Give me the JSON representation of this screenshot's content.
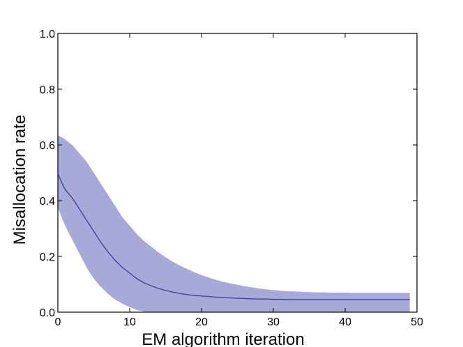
{
  "chart_data": {
    "type": "line",
    "xlabel": "EM algorithm iteration",
    "ylabel": "Misallocation rate",
    "xlim": [
      0,
      50
    ],
    "ylim": [
      0,
      1.0
    ],
    "xticks": [
      0,
      10,
      20,
      30,
      40,
      50
    ],
    "xtick_labels": [
      "0",
      "10",
      "20",
      "30",
      "40",
      "50"
    ],
    "yticks": [
      0.0,
      0.2,
      0.4,
      0.6,
      0.8,
      1.0
    ],
    "ytick_labels": [
      "0.0",
      "0.2",
      "0.4",
      "0.6",
      "0.8",
      "1.0"
    ],
    "grid": false,
    "series": [
      {
        "x": [
          0,
          1,
          2,
          3,
          4,
          5,
          6,
          7,
          8,
          9,
          10,
          11,
          12,
          13,
          14,
          15,
          16,
          17,
          18,
          19,
          20,
          21,
          22,
          23,
          24,
          25,
          26,
          27,
          28,
          29,
          30,
          31,
          32,
          33,
          34,
          35,
          36,
          37,
          38,
          39,
          40,
          41,
          42,
          43,
          44,
          45,
          46,
          47,
          48,
          49
        ],
        "y": [
          0.495,
          0.44,
          0.41,
          0.37,
          0.33,
          0.29,
          0.25,
          0.215,
          0.185,
          0.16,
          0.14,
          0.12,
          0.105,
          0.095,
          0.085,
          0.078,
          0.072,
          0.067,
          0.063,
          0.06,
          0.058,
          0.056,
          0.054,
          0.052,
          0.051,
          0.05,
          0.049,
          0.048,
          0.047,
          0.047,
          0.046,
          0.046,
          0.045,
          0.045,
          0.045,
          0.045,
          0.045,
          0.045,
          0.045,
          0.045,
          0.045,
          0.045,
          0.045,
          0.045,
          0.045,
          0.045,
          0.045,
          0.045,
          0.045,
          0.045
        ],
        "lower": [
          0.375,
          0.31,
          0.26,
          0.21,
          0.16,
          0.12,
          0.09,
          0.065,
          0.045,
          0.03,
          0.018,
          0.008,
          0.002,
          0.0,
          0.0,
          0.0,
          0.0,
          0.0,
          0.0,
          0.0,
          0.0,
          0.0,
          0.0,
          0.0,
          0.0,
          0.0,
          0.0,
          0.0,
          0.0,
          0.0,
          0.0,
          0.0,
          0.0,
          0.0,
          0.0,
          0.0,
          0.0,
          0.0,
          0.0,
          0.0,
          0.0,
          0.0,
          0.0,
          0.0,
          0.0,
          0.0,
          0.0,
          0.0,
          0.0,
          0.0
        ],
        "upper": [
          0.635,
          0.62,
          0.6,
          0.57,
          0.54,
          0.5,
          0.46,
          0.42,
          0.38,
          0.34,
          0.31,
          0.28,
          0.255,
          0.235,
          0.215,
          0.197,
          0.181,
          0.167,
          0.155,
          0.143,
          0.133,
          0.124,
          0.116,
          0.109,
          0.103,
          0.098,
          0.093,
          0.089,
          0.085,
          0.082,
          0.079,
          0.077,
          0.075,
          0.074,
          0.073,
          0.072,
          0.071,
          0.071,
          0.07,
          0.07,
          0.07,
          0.069,
          0.069,
          0.069,
          0.069,
          0.069,
          0.069,
          0.069,
          0.069,
          0.069
        ],
        "line_color": "#3a44a0",
        "band_color": "#a7a9d8"
      }
    ]
  }
}
